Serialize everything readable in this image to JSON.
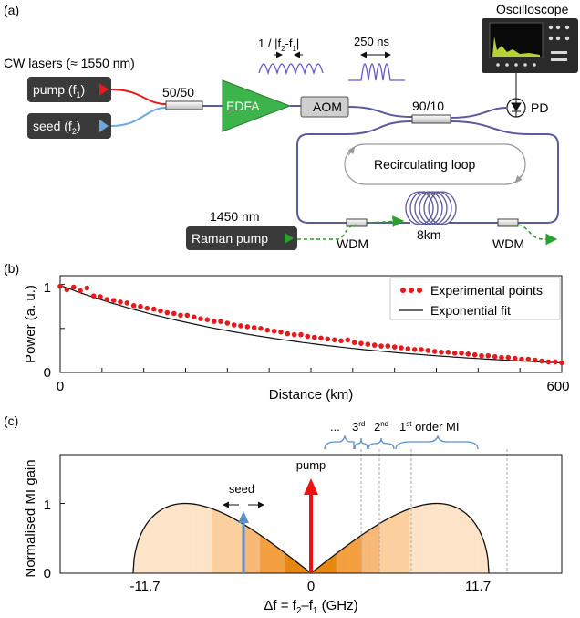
{
  "panel_a": {
    "label": "(a)",
    "cw_lasers_label": "CW lasers (≈ 1550 nm)",
    "pump_box_label": "pump (f",
    "pump_box_sub": "1",
    "pump_box_close": ")",
    "seed_box_label": "seed (f",
    "seed_box_sub": "2",
    "seed_box_close": ")",
    "coupler_5050_label": "50/50",
    "edfa_label": "EDFA",
    "aom_label": "AOM",
    "coupler_9010_label": "90/10",
    "period_label": "1 / |f",
    "period_sub1": "2",
    "period_mid": "-f",
    "period_sub2": "1",
    "period_close": "|",
    "pulse_label": "250 ns",
    "oscilloscope_label": "Oscilloscope",
    "pd_label": "PD",
    "loop_label": "Recirculating loop",
    "fiber_label": "8km",
    "raman_wavelength_label": "1450 nm",
    "raman_box_label": "Raman pump",
    "wdm_left_label": "WDM",
    "wdm_right_label": "WDM",
    "colors": {
      "pump_red": "#e41a1c",
      "seed_blue": "#6fa8dc",
      "edfa_green": "#3cb44b",
      "fiber_purple": "#5a5a9c",
      "raman_green": "#2ca02c",
      "scope_trace": "#b5d334"
    }
  },
  "panel_b": {
    "label": "(b)",
    "legend_experimental": "Experimental points",
    "legend_fit": "Exponential fit"
  },
  "panel_c": {
    "label": "(c)",
    "seed_label": "seed",
    "pump_label": "pump",
    "order_dots": "...",
    "order_3": "3",
    "order_3_sup": "rd",
    "order_2": "2",
    "order_2_sup": "nd",
    "order_1": "1",
    "order_1_sup": "st",
    "order_1_rest": " order MI",
    "colors": {
      "gain_light": "#fde4c8",
      "gain_mid": "#f8b877",
      "gain_dark": "#e8870e",
      "pump_arrow": "#ee1111",
      "seed_arrow": "#5b8fc6",
      "bracket": "#5b8fc6"
    }
  },
  "chart_data": [
    {
      "type": "scatter",
      "xlabel": "Distance (km)",
      "ylabel": "Power (a. u.)",
      "xlim": [
        0,
        600
      ],
      "ylim": [
        0,
        1.1
      ],
      "xticks": [
        "0",
        "600"
      ],
      "yticks": [
        "0",
        "1"
      ],
      "legend": "top-right",
      "series": [
        {
          "name": "Experimental points",
          "x": [
            0,
            8,
            16,
            24,
            32,
            40,
            48,
            56,
            64,
            72,
            80,
            88,
            96,
            104,
            112,
            120,
            128,
            136,
            144,
            152,
            160,
            168,
            176,
            184,
            192,
            200,
            208,
            216,
            224,
            232,
            240,
            248,
            256,
            264,
            272,
            280,
            288,
            296,
            304,
            312,
            320,
            328,
            336,
            344,
            352,
            360,
            368,
            376,
            384,
            392,
            400,
            408,
            416,
            424,
            432,
            440,
            448,
            456,
            464,
            472,
            480,
            488,
            496,
            504,
            512,
            520,
            528,
            536,
            544,
            552,
            560,
            568,
            576,
            584,
            592,
            600
          ],
          "y": [
            0.98,
            0.94,
            0.97,
            0.93,
            0.96,
            0.87,
            0.86,
            0.83,
            0.82,
            0.8,
            0.79,
            0.76,
            0.75,
            0.73,
            0.72,
            0.7,
            0.68,
            0.67,
            0.65,
            0.65,
            0.63,
            0.61,
            0.6,
            0.58,
            0.58,
            0.56,
            0.54,
            0.53,
            0.52,
            0.51,
            0.5,
            0.48,
            0.47,
            0.46,
            0.44,
            0.43,
            0.43,
            0.41,
            0.4,
            0.39,
            0.38,
            0.37,
            0.36,
            0.37,
            0.34,
            0.33,
            0.32,
            0.31,
            0.3,
            0.3,
            0.29,
            0.28,
            0.27,
            0.26,
            0.26,
            0.25,
            0.24,
            0.23,
            0.23,
            0.22,
            0.22,
            0.21,
            0.2,
            0.19,
            0.19,
            0.18,
            0.17,
            0.17,
            0.16,
            0.15,
            0.15,
            0.14,
            0.13,
            0.12,
            0.12,
            0.11
          ]
        },
        {
          "name": "Exponential fit",
          "type": "line",
          "x": [
            0,
            600
          ],
          "model": "y = 0.99 * exp(-x / 272)"
        }
      ]
    },
    {
      "type": "area",
      "xlabel": "Δf = f",
      "xlabel_sub1": "2",
      "xlabel_mid": "–f",
      "xlabel_sub2": "1",
      "xlabel_units": " (GHz)",
      "ylabel": "Normalised MI gain",
      "xlim": [
        -16.5,
        16.5
      ],
      "ylim": [
        0,
        1.7
      ],
      "xticks": [
        "-11.7",
        "0",
        "11.7"
      ],
      "yticks": [
        "0",
        "1"
      ],
      "series": [
        {
          "name": "MI gain",
          "x": [
            -11.7,
            -8.27,
            0,
            8.27,
            11.7
          ],
          "y": [
            0,
            1,
            0,
            1,
            0
          ]
        }
      ],
      "order_boundaries_GHz": [
        3.3,
        4.5,
        6.6,
        12.9
      ],
      "seed_position_GHz": -5.5,
      "pump_position_GHz": 0
    }
  ]
}
